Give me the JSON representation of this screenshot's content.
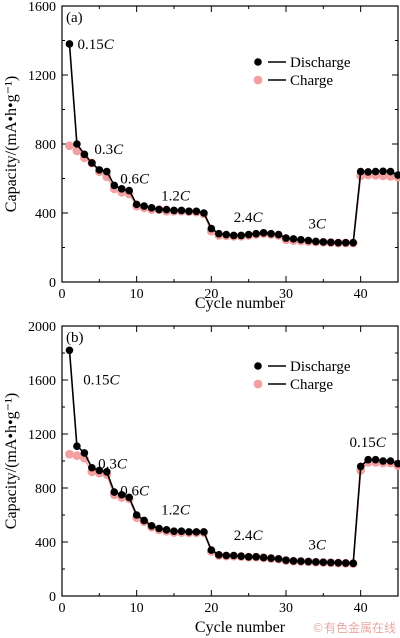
{
  "colors": {
    "discharge": "#000000",
    "charge": "#f2a0a0",
    "axis": "#000000"
  },
  "chart_data": [
    {
      "type": "scatter",
      "panel_label": "(a)",
      "xlabel": "Cycle number",
      "ylabel": "Capacity/(mA•h•g⁻¹)",
      "xlim": [
        0,
        45
      ],
      "ylim": [
        0,
        1600
      ],
      "xticks": [
        0,
        10,
        20,
        30,
        40
      ],
      "yticks": [
        0,
        400,
        800,
        1200,
        1600
      ],
      "legend": {
        "position": "top-right",
        "entries": [
          "Discharge",
          "Charge"
        ]
      },
      "annotations": [
        {
          "text": "0.15C",
          "x": 1,
          "y": 1380
        },
        {
          "text": "0.3C",
          "x": 3,
          "y": 730
        },
        {
          "text": "0.6C",
          "x": 7,
          "y": 560
        },
        {
          "text": "1.2C",
          "x": 13,
          "y": 460
        },
        {
          "text": "2.4C",
          "x": 23,
          "y": 335
        },
        {
          "text": "3C",
          "x": 33,
          "y": 300
        }
      ],
      "x": [
        1,
        2,
        3,
        4,
        5,
        6,
        7,
        8,
        9,
        10,
        11,
        12,
        13,
        14,
        15,
        16,
        17,
        18,
        19,
        20,
        21,
        22,
        23,
        24,
        25,
        26,
        27,
        28,
        29,
        30,
        31,
        32,
        33,
        34,
        35,
        36,
        37,
        38,
        39,
        40,
        41,
        42,
        43,
        44,
        45
      ],
      "series": [
        {
          "name": "Discharge",
          "values": [
            1380,
            800,
            740,
            690,
            650,
            640,
            560,
            540,
            530,
            450,
            440,
            430,
            420,
            420,
            415,
            415,
            410,
            410,
            400,
            310,
            280,
            275,
            270,
            270,
            275,
            280,
            285,
            280,
            275,
            255,
            250,
            245,
            240,
            235,
            232,
            230,
            228,
            228,
            228,
            640,
            638,
            640,
            642,
            640,
            620
          ]
        },
        {
          "name": "Charge",
          "values": [
            790,
            760,
            720,
            690,
            640,
            610,
            540,
            520,
            510,
            440,
            430,
            420,
            420,
            410,
            410,
            410,
            408,
            405,
            395,
            295,
            270,
            268,
            265,
            265,
            270,
            275,
            280,
            275,
            270,
            245,
            240,
            238,
            235,
            232,
            230,
            228,
            226,
            226,
            226,
            615,
            620,
            618,
            615,
            612,
            608
          ]
        }
      ]
    },
    {
      "type": "scatter",
      "panel_label": "(b)",
      "xlabel": "Cycle number",
      "ylabel": "Capacity/(mA•h•g⁻¹)",
      "xlim": [
        0,
        45
      ],
      "ylim": [
        0,
        2000
      ],
      "xticks": [
        0,
        10,
        20,
        30,
        40
      ],
      "yticks": [
        0,
        400,
        800,
        1200,
        1600,
        2000
      ],
      "legend": {
        "position": "top-right",
        "entries": [
          "Discharge",
          "Charge"
        ]
      },
      "annotations": [
        {
          "text": "0.15C",
          "x": 1.5,
          "y": 1640
        },
        {
          "text": "0.3C",
          "x": 3.5,
          "y": 930
        },
        {
          "text": "0.6C",
          "x": 7,
          "y": 730
        },
        {
          "text": "1.2C",
          "x": 13,
          "y": 590
        },
        {
          "text": "2.4C",
          "x": 23,
          "y": 400
        },
        {
          "text": "3C",
          "x": 33,
          "y": 330
        },
        {
          "text": "0.15C",
          "x": 38.5,
          "y": 1090
        }
      ],
      "x": [
        1,
        2,
        3,
        4,
        5,
        6,
        7,
        8,
        9,
        10,
        11,
        12,
        13,
        14,
        15,
        16,
        17,
        18,
        19,
        20,
        21,
        22,
        23,
        24,
        25,
        26,
        27,
        28,
        29,
        30,
        31,
        32,
        33,
        34,
        35,
        36,
        37,
        38,
        39,
        40,
        41,
        42,
        43,
        44,
        45
      ],
      "series": [
        {
          "name": "Discharge",
          "values": [
            1820,
            1110,
            1060,
            950,
            930,
            920,
            770,
            750,
            730,
            600,
            560,
            520,
            500,
            490,
            480,
            480,
            475,
            475,
            475,
            340,
            305,
            300,
            300,
            295,
            290,
            290,
            285,
            280,
            275,
            265,
            260,
            258,
            255,
            252,
            250,
            248,
            246,
            244,
            242,
            960,
            1010,
            1010,
            1000,
            1000,
            980
          ]
        },
        {
          "name": "Charge",
          "values": [
            1050,
            1040,
            1020,
            920,
            910,
            900,
            750,
            730,
            720,
            580,
            550,
            510,
            490,
            480,
            470,
            470,
            468,
            468,
            470,
            330,
            300,
            296,
            295,
            292,
            288,
            288,
            283,
            278,
            273,
            262,
            258,
            256,
            253,
            250,
            248,
            246,
            244,
            242,
            240,
            930,
            990,
            990,
            985,
            985,
            965
          ]
        }
      ]
    }
  ],
  "watermark": "©有色金属在线"
}
